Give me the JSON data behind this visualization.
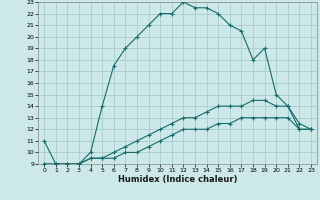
{
  "xlabel": "Humidex (Indice chaleur)",
  "bg_color": "#cce8e8",
  "grid_color": "#aacccc",
  "line_color": "#1a6b6b",
  "xlim": [
    -0.5,
    23.5
  ],
  "ylim": [
    9,
    23
  ],
  "xticks": [
    0,
    1,
    2,
    3,
    4,
    5,
    6,
    7,
    8,
    9,
    10,
    11,
    12,
    13,
    14,
    15,
    16,
    17,
    18,
    19,
    20,
    21,
    22,
    23
  ],
  "yticks": [
    9,
    10,
    11,
    12,
    13,
    14,
    15,
    16,
    17,
    18,
    19,
    20,
    21,
    22,
    23
  ],
  "line1_x": [
    0,
    1,
    2,
    3,
    4,
    5,
    6,
    7,
    8,
    9,
    10,
    11,
    12,
    13,
    14,
    15,
    16,
    17,
    18,
    19,
    20,
    21,
    22,
    23
  ],
  "line1_y": [
    11,
    9,
    9,
    9,
    10,
    14,
    17.5,
    19,
    20,
    21,
    22,
    22,
    23,
    22.5,
    22.5,
    22,
    21,
    20.5,
    18,
    19,
    15,
    14,
    12,
    12
  ],
  "line2_x": [
    0,
    1,
    2,
    3,
    4,
    5,
    6,
    7,
    8,
    9,
    10,
    11,
    12,
    13,
    14,
    15,
    16,
    17,
    18,
    19,
    20,
    21,
    22,
    23
  ],
  "line2_y": [
    9,
    9,
    9,
    9,
    9.5,
    9.5,
    10,
    10.5,
    11,
    11.5,
    12,
    12.5,
    13,
    13,
    13.5,
    14,
    14,
    14,
    14.5,
    14.5,
    14,
    14,
    12.5,
    12
  ],
  "line3_x": [
    0,
    1,
    2,
    3,
    4,
    5,
    6,
    7,
    8,
    9,
    10,
    11,
    12,
    13,
    14,
    15,
    16,
    17,
    18,
    19,
    20,
    21,
    22,
    23
  ],
  "line3_y": [
    9,
    9,
    9,
    9,
    9.5,
    9.5,
    9.5,
    10,
    10,
    10.5,
    11,
    11.5,
    12,
    12,
    12,
    12.5,
    12.5,
    13,
    13,
    13,
    13,
    13,
    12,
    12
  ]
}
